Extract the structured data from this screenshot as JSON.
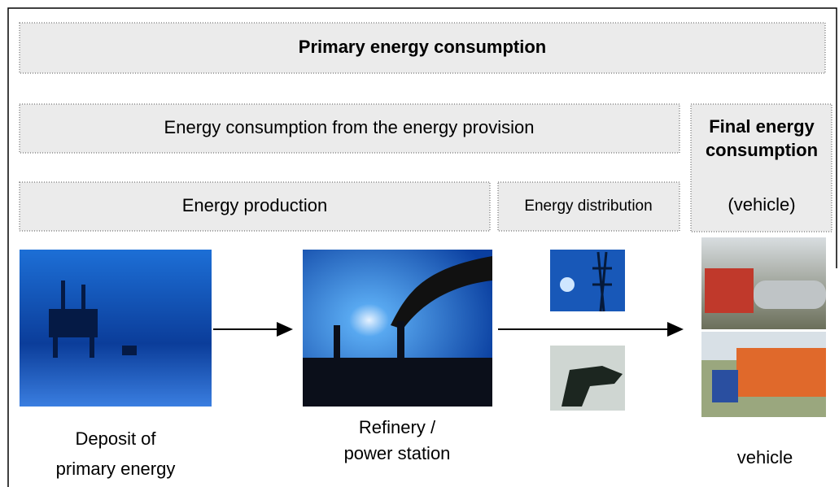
{
  "header": {
    "title": "Primary energy consumption"
  },
  "levels": {
    "provision": "Energy consumption from the energy provision",
    "final": {
      "line1": "Final energy",
      "line2": "consumption",
      "note": "(vehicle)"
    },
    "production": "Energy production",
    "distribution": "Energy distribution"
  },
  "stages": [
    {
      "line1": "Deposit of",
      "line2": "primary energy"
    },
    {
      "line1": "Refinery /",
      "line2": "power station"
    },
    {
      "line1": "vehicle"
    }
  ]
}
